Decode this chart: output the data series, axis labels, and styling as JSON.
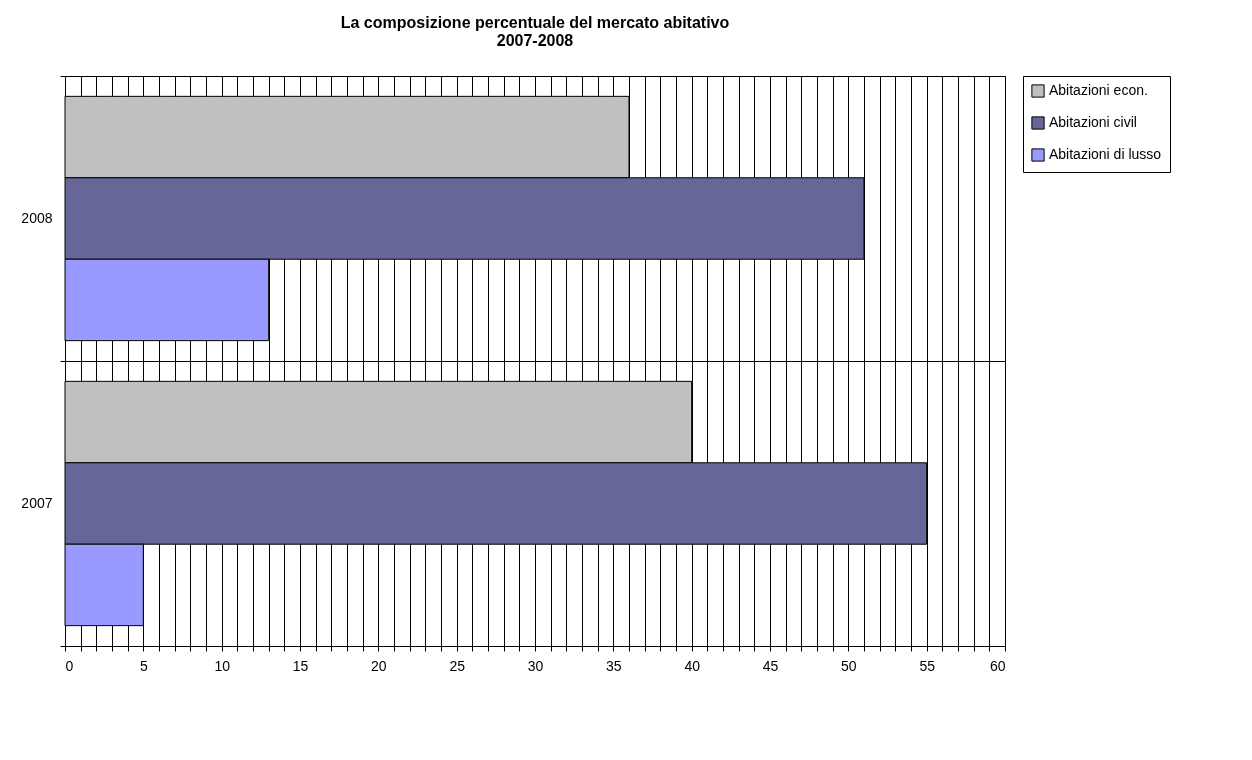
{
  "chart_data": {
    "type": "bar",
    "orientation": "horizontal",
    "title": "La composizione percentuale del mercato abitativo\n2007-2008",
    "categories": [
      "2008",
      "2007"
    ],
    "series": [
      {
        "name": "Abitazioni econ.",
        "color": "#c0c0c0",
        "values": [
          36,
          40
        ]
      },
      {
        "name": "Abitazioni civil",
        "color": "#666699",
        "values": [
          51,
          55
        ]
      },
      {
        "name": "Abitazioni di lusso",
        "color": "#9999ff",
        "values": [
          13,
          5
        ]
      }
    ],
    "xlim": [
      0,
      60
    ],
    "xticks": [
      0,
      {
        "value": 1,
        "label": null
      },
      {
        "value": 2,
        "label": null
      },
      {
        "value": 3,
        "label": null
      },
      {
        "value": 4,
        "label": null
      },
      5,
      {
        "value": 6,
        "label": null
      },
      {
        "value": 7,
        "label": null
      },
      {
        "value": 8,
        "label": null
      },
      {
        "value": 9,
        "label": null
      },
      10,
      {
        "value": 11,
        "label": null
      },
      {
        "value": 12,
        "label": null
      },
      {
        "value": 13,
        "label": null
      },
      {
        "value": 14,
        "label": null
      },
      15,
      {
        "value": 16,
        "label": null
      },
      {
        "value": 17,
        "label": null
      },
      {
        "value": 18,
        "label": null
      },
      {
        "value": 19,
        "label": null
      },
      20,
      {
        "value": 21,
        "label": null
      },
      {
        "value": 22,
        "label": null
      },
      {
        "value": 23,
        "label": null
      },
      {
        "value": 24,
        "label": null
      },
      25,
      {
        "value": 26,
        "label": null
      },
      {
        "value": 27,
        "label": null
      },
      {
        "value": 28,
        "label": null
      },
      {
        "value": 29,
        "label": null
      },
      30,
      {
        "value": 31,
        "label": null
      },
      {
        "value": 32,
        "label": null
      },
      {
        "value": 33,
        "label": null
      },
      {
        "value": 34,
        "label": null
      },
      35,
      {
        "value": 36,
        "label": null
      },
      {
        "value": 37,
        "label": null
      },
      {
        "value": 38,
        "label": null
      },
      {
        "value": 39,
        "label": null
      },
      40,
      {
        "value": 41,
        "label": null
      },
      {
        "value": 42,
        "label": null
      },
      {
        "value": 43,
        "label": null
      },
      {
        "value": 44,
        "label": null
      },
      45,
      {
        "value": 46,
        "label": null
      },
      {
        "value": 47,
        "label": null
      },
      {
        "value": 48,
        "label": null
      },
      {
        "value": 49,
        "label": null
      },
      50,
      {
        "value": 51,
        "label": null
      },
      {
        "value": 52,
        "label": null
      },
      {
        "value": 53,
        "label": null
      },
      {
        "value": 54,
        "label": null
      },
      55,
      {
        "value": 56,
        "label": null
      },
      {
        "value": 57,
        "label": null
      },
      {
        "value": 58,
        "label": null
      },
      {
        "value": 59,
        "label": null
      },
      60
    ],
    "grid": true,
    "legend": "right"
  }
}
